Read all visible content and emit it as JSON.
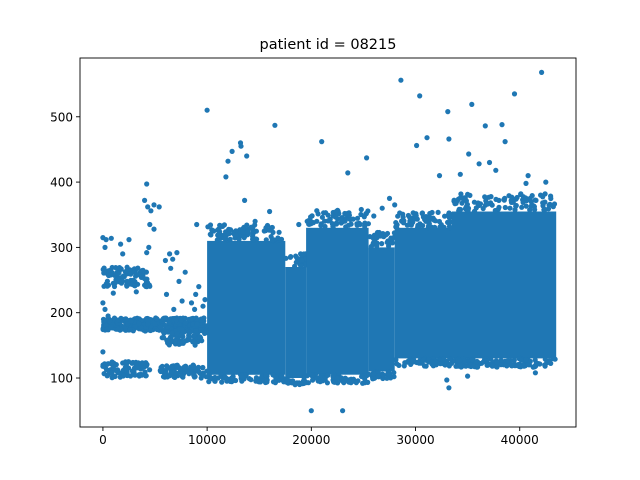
{
  "chart_data": {
    "type": "scatter",
    "title": "patient id = 08215",
    "xlabel": "",
    "ylabel": "",
    "xlim": [
      -2200,
      45400
    ],
    "ylim": [
      25,
      590
    ],
    "xticks": [
      0,
      10000,
      20000,
      30000,
      40000
    ],
    "xtick_labels": [
      "0",
      "10000",
      "20000",
      "30000",
      "40000"
    ],
    "yticks": [
      100,
      200,
      300,
      400,
      500
    ],
    "ytick_labels": [
      "100",
      "200",
      "300",
      "400",
      "500"
    ],
    "grid": false,
    "legend": "none",
    "marker_color": "#1f77b4",
    "dense_regions": [
      {
        "x": [
          10000,
          17500
        ],
        "y": [
          105,
          310
        ]
      },
      {
        "x": [
          17500,
          19500
        ],
        "y": [
          100,
          270
        ]
      },
      {
        "x": [
          19500,
          25500
        ],
        "y": [
          105,
          330
        ]
      },
      {
        "x": [
          25500,
          28000
        ],
        "y": [
          110,
          300
        ]
      },
      {
        "x": [
          28000,
          33500
        ],
        "y": [
          130,
          330
        ]
      },
      {
        "x": [
          33500,
          43500
        ],
        "y": [
          130,
          355
        ]
      }
    ],
    "sparse_bands": [
      {
        "x": [
          0,
          10000
        ],
        "y": [
          172,
          192
        ]
      },
      {
        "x": [
          0,
          4500
        ],
        "y": [
          100,
          125
        ]
      },
      {
        "x": [
          0,
          4500
        ],
        "y": [
          240,
          270
        ]
      },
      {
        "x": [
          5500,
          10000
        ],
        "y": [
          150,
          175
        ]
      },
      {
        "x": [
          5500,
          10000
        ],
        "y": [
          100,
          120
        ]
      }
    ],
    "points": [
      [
        0,
        315
      ],
      [
        300,
        312
      ],
      [
        800,
        314
      ],
      [
        200,
        300
      ],
      [
        2500,
        312
      ],
      [
        1700,
        305
      ],
      [
        1900,
        290
      ],
      [
        700,
        265
      ],
      [
        1200,
        258
      ],
      [
        1600,
        252
      ],
      [
        2300,
        248
      ],
      [
        3000,
        262
      ],
      [
        3500,
        258
      ],
      [
        4000,
        252
      ],
      [
        4200,
        240
      ],
      [
        3200,
        232
      ],
      [
        1000,
        230
      ],
      [
        0,
        215
      ],
      [
        200,
        205
      ],
      [
        500,
        195
      ],
      [
        0,
        140
      ],
      [
        0,
        118
      ],
      [
        4200,
        397
      ],
      [
        4000,
        372
      ],
      [
        4300,
        362
      ],
      [
        4600,
        356
      ],
      [
        4900,
        365
      ],
      [
        5400,
        362
      ],
      [
        4500,
        335
      ],
      [
        4900,
        328
      ],
      [
        4400,
        300
      ],
      [
        4200,
        292
      ],
      [
        6400,
        290
      ],
      [
        6700,
        282
      ],
      [
        7100,
        292
      ],
      [
        6500,
        268
      ],
      [
        7900,
        262
      ],
      [
        6000,
        280
      ],
      [
        7300,
        248
      ],
      [
        6100,
        228
      ],
      [
        7600,
        218
      ],
      [
        8500,
        215
      ],
      [
        6800,
        205
      ],
      [
        8800,
        205
      ],
      [
        9200,
        240
      ],
      [
        8900,
        228
      ],
      [
        9600,
        210
      ],
      [
        9800,
        220
      ],
      [
        9000,
        335
      ],
      [
        10000,
        510
      ],
      [
        10300,
        320
      ],
      [
        11800,
        408
      ],
      [
        12000,
        432
      ],
      [
        12400,
        447
      ],
      [
        13200,
        460
      ],
      [
        13250,
        455
      ],
      [
        13800,
        440
      ],
      [
        13600,
        372
      ],
      [
        14600,
        340
      ],
      [
        16000,
        355
      ],
      [
        16500,
        487
      ],
      [
        18800,
        335
      ],
      [
        19600,
        340
      ],
      [
        21000,
        462
      ],
      [
        22400,
        355
      ],
      [
        23500,
        414
      ],
      [
        25300,
        437
      ],
      [
        24800,
        358
      ],
      [
        26000,
        348
      ],
      [
        26800,
        360
      ],
      [
        27500,
        375
      ],
      [
        28000,
        365
      ],
      [
        28600,
        556
      ],
      [
        30100,
        456
      ],
      [
        30400,
        532
      ],
      [
        31100,
        468
      ],
      [
        31000,
        340
      ],
      [
        32300,
        410
      ],
      [
        33100,
        508
      ],
      [
        33200,
        466
      ],
      [
        34300,
        412
      ],
      [
        35100,
        443
      ],
      [
        35400,
        519
      ],
      [
        36100,
        428
      ],
      [
        36700,
        486
      ],
      [
        37100,
        430
      ],
      [
        37700,
        418
      ],
      [
        38300,
        488
      ],
      [
        38600,
        462
      ],
      [
        39500,
        535
      ],
      [
        40100,
        382
      ],
      [
        40600,
        398
      ],
      [
        40800,
        410
      ],
      [
        42100,
        568
      ],
      [
        42500,
        400
      ],
      [
        36000,
        368
      ],
      [
        38000,
        372
      ],
      [
        41000,
        375
      ],
      [
        42900,
        366
      ],
      [
        20000,
        50
      ],
      [
        23000,
        50
      ],
      [
        33200,
        85
      ],
      [
        33000,
        97
      ],
      [
        17700,
        95
      ],
      [
        35000,
        103
      ],
      [
        41500,
        108
      ],
      [
        42400,
        120
      ]
    ]
  }
}
